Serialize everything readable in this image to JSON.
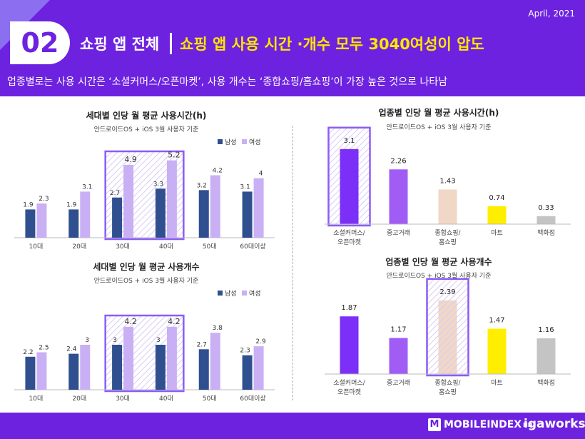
{
  "header": {
    "date": "April, 2021",
    "badge": "02",
    "title_main": "쇼핑 앱 전체",
    "title_sub": "쇼핑 앱 사용 시간 ·개수 모두 3040여성이 압도",
    "description": "업종별로는 사용 시간은 ‘소셜커머스/오픈마켓’, 사용 개수는 ‘종합쇼핑/홈쇼핑’이 가장 높은 것으로 나타남"
  },
  "footer": {
    "logo_main": "MOBILEINDEX",
    "logo_hd": "HD",
    "logo_brand": "igaworks"
  },
  "colors": {
    "purple": "#6d22e0",
    "male": "#2f4f8f",
    "female": "#c9b0f5",
    "highlight": "#8b5cf6",
    "yellow": "#ffe600"
  },
  "chart_data": [
    {
      "type": "bar",
      "title": "세대별 인당 월 평균 사용시간(h)",
      "subtitle": "안드로이드OS + iOS 3월 사용자 기준",
      "categories": [
        "10대",
        "20대",
        "30대",
        "40대",
        "50대",
        "60대이상"
      ],
      "series": [
        {
          "name": "남성",
          "color": "#2f4f8f",
          "values": [
            1.9,
            1.9,
            2.7,
            3.3,
            3.2,
            3.1
          ]
        },
        {
          "name": "여성",
          "color": "#c9b0f5",
          "values": [
            2.3,
            3.1,
            4.9,
            5.2,
            4.2,
            4
          ]
        }
      ],
      "ylim": [
        0,
        6
      ],
      "legend": "top-right",
      "highlight_categories": [
        "30대",
        "40대"
      ]
    },
    {
      "type": "bar",
      "title": "세대별 인당 월 평균 사용개수",
      "subtitle": "안드로이드OS + iOS 3월 사용자 기준",
      "categories": [
        "10대",
        "20대",
        "30대",
        "40대",
        "50대",
        "60대이상"
      ],
      "series": [
        {
          "name": "남성",
          "color": "#2f4f8f",
          "values": [
            2.2,
            2.4,
            3,
            3,
            2.7,
            2.3
          ]
        },
        {
          "name": "여성",
          "color": "#c9b0f5",
          "values": [
            2.5,
            3,
            4.2,
            4.2,
            3.8,
            2.9
          ]
        }
      ],
      "ylim": [
        0,
        5
      ],
      "legend": "top-right",
      "highlight_categories": [
        "30대",
        "40대"
      ]
    },
    {
      "type": "bar",
      "title": "업종별 인당 월 평균 사용시간(h)",
      "subtitle": "안드로이드OS + iOS 3월 사용자 기준",
      "categories": [
        "소셜커머스/\n오픈마켓",
        "중고거래",
        "종합쇼핑/\n홈쇼핑",
        "마트",
        "백화점"
      ],
      "values": [
        3.1,
        2.26,
        1.43,
        0.74,
        0.33
      ],
      "colors": [
        "#7b2ff7",
        "#a05cf5",
        "#f0d7c6",
        "#ffee00",
        "#c4c4c4"
      ],
      "ylim": [
        0,
        3.3
      ],
      "highlight_categories": [
        "소셜커머스/\n오픈마켓"
      ]
    },
    {
      "type": "bar",
      "title": "업종별 인당 월 평균 사용개수",
      "subtitle": "안드로이드OS + iOS 3월 사용자 기준",
      "categories": [
        "소셜커머스/\n오픈마켓",
        "중고거래",
        "종합쇼핑/\n홈쇼핑",
        "마트",
        "백화점"
      ],
      "values": [
        1.87,
        1.17,
        2.39,
        1.47,
        1.16
      ],
      "colors": [
        "#7b2ff7",
        "#a05cf5",
        "#f0d7c6",
        "#ffee00",
        "#c4c4c4"
      ],
      "ylim": [
        0,
        2.5
      ],
      "highlight_categories": [
        "종합쇼핑/\n홈쇼핑"
      ]
    }
  ]
}
